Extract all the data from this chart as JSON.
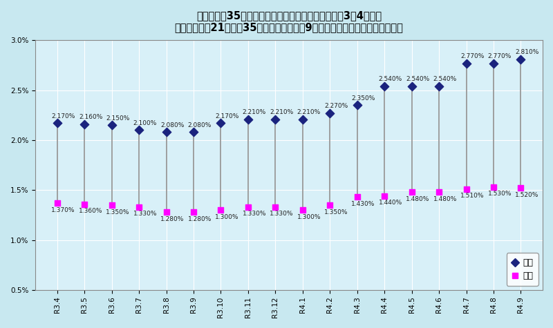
{
  "title_line1": "》フラット35》借入金利の推移（最低～最高）令和3年4月から",
  "title_line2": "＜借入期間が21年以上35年以下、融資率が9割以下、新機構団信付きの場合＞",
  "categories": [
    "R3.4",
    "R3.5",
    "R3.6",
    "R3.7",
    "R3.8",
    "R3.9",
    "R3.10",
    "R3.11",
    "R3.12",
    "R4.1",
    "R4.2",
    "R4.3",
    "R4.4",
    "R4.5",
    "R4.6",
    "R4.7",
    "R4.8",
    "R4.9"
  ],
  "high_values": [
    2.17,
    2.16,
    2.15,
    2.1,
    2.08,
    2.08,
    2.17,
    2.21,
    2.21,
    2.21,
    2.27,
    2.35,
    2.54,
    2.54,
    2.54,
    2.77,
    2.77,
    2.81
  ],
  "low_values": [
    1.37,
    1.36,
    1.35,
    1.33,
    1.28,
    1.28,
    1.3,
    1.33,
    1.33,
    1.3,
    1.35,
    1.43,
    1.44,
    1.48,
    1.48,
    1.51,
    1.53,
    1.52
  ],
  "ylim": [
    0.5,
    3.0
  ],
  "yticks": [
    0.5,
    1.0,
    1.5,
    2.0,
    2.5,
    3.0
  ],
  "ytick_labels": [
    "0.5%",
    "1.0%",
    "1.5%",
    "2.0%",
    "2.5%",
    "3.0%"
  ],
  "bg_color": "#c8e8f0",
  "plot_bg_color": "#d8f0f8",
  "high_color": "#1a237e",
  "low_color": "#ff00ff",
  "line_color": "#909090",
  "legend_high": "最高",
  "legend_low": "最低",
  "title_fontsize": 10.5,
  "tick_fontsize": 7.5,
  "label_fontsize": 6.5
}
